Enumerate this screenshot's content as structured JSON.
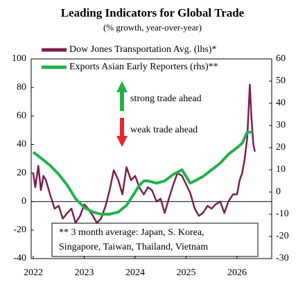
{
  "chart_data": {
    "type": "line",
    "title": "Leading Indicators for Global Trade",
    "subtitle": "(% growth, year-over-year)",
    "series": [
      {
        "name": "Dow Jones Transportation Avg. (lhs)*",
        "color": "#7b1f4f",
        "axis": "y",
        "x": [
          2022.0,
          2022.04,
          2022.1,
          2022.15,
          2022.2,
          2022.25,
          2022.33,
          2022.42,
          2022.5,
          2022.58,
          2022.67,
          2022.75,
          2022.83,
          2022.92,
          2023.0,
          2023.08,
          2023.17,
          2023.25,
          2023.33,
          2023.42,
          2023.5,
          2023.58,
          2023.67,
          2023.75,
          2023.83,
          2023.92,
          2024.0,
          2024.08,
          2024.17,
          2024.25,
          2024.33,
          2024.42,
          2024.5,
          2024.58,
          2024.67,
          2024.75,
          2024.83,
          2024.92,
          2025.0,
          2025.08,
          2025.17,
          2025.25,
          2025.33,
          2025.42,
          2025.5,
          2025.58,
          2025.67,
          2025.75,
          2025.83,
          2025.92,
          2026.0,
          2026.05,
          2026.1,
          2026.15,
          2026.2,
          2026.25,
          2026.28,
          2026.32,
          2026.35
        ],
        "values": [
          20,
          10,
          25,
          8,
          18,
          15,
          5,
          -5,
          -3,
          -12,
          -8,
          -5,
          -15,
          -10,
          -2,
          -5,
          -10,
          -15,
          -12,
          -3,
          8,
          22,
          15,
          5,
          24,
          15,
          18,
          10,
          5,
          10,
          8,
          0,
          2,
          -8,
          3,
          12,
          20,
          18,
          12,
          6,
          -5,
          -10,
          -8,
          -3,
          -5,
          -2,
          0,
          -8,
          0,
          5,
          5,
          15,
          20,
          30,
          45,
          82,
          60,
          40,
          35
        ]
      },
      {
        "name": "Exports Asian Early Reporters (rhs)**",
        "color": "#22b14c",
        "axis": "y2",
        "x": [
          2022.0,
          2022.17,
          2022.33,
          2022.5,
          2022.67,
          2022.83,
          2023.0,
          2023.17,
          2023.33,
          2023.5,
          2023.67,
          2023.83,
          2024.0,
          2024.08,
          2024.17,
          2024.25,
          2024.42,
          2024.58,
          2024.75,
          2024.92,
          2025.0,
          2025.08,
          2025.17,
          2025.33,
          2025.5,
          2025.67,
          2025.83,
          2026.0,
          2026.1,
          2026.2,
          2026.3
        ],
        "values": [
          18,
          15,
          12,
          8,
          3,
          -3,
          -7,
          -9,
          -10,
          -10,
          -9,
          -6,
          0,
          3,
          5,
          5,
          4,
          5,
          8,
          10,
          7,
          4,
          5,
          7,
          10,
          13,
          17,
          20,
          22,
          27,
          27
        ]
      }
    ],
    "xlim": [
      2021.96,
      2026.68
    ],
    "xticks": [
      2022,
      2023,
      2024,
      2025,
      2026
    ],
    "ylim": [
      -40,
      100
    ],
    "yticks": [
      -40,
      -20,
      0,
      20,
      40,
      60,
      80,
      100
    ],
    "y2lim": [
      -30,
      60
    ],
    "y2ticks": [
      -30,
      -20,
      -10,
      0,
      10,
      20,
      30,
      40,
      50,
      60
    ],
    "reference_line": 0,
    "annotations": {
      "up": "strong trade ahead",
      "down": "weak trade ahead",
      "note": [
        "** 3 month average: Japan, S. Korea,",
        "Singapore, Taiwan, Thailand, Vietnam"
      ]
    }
  }
}
